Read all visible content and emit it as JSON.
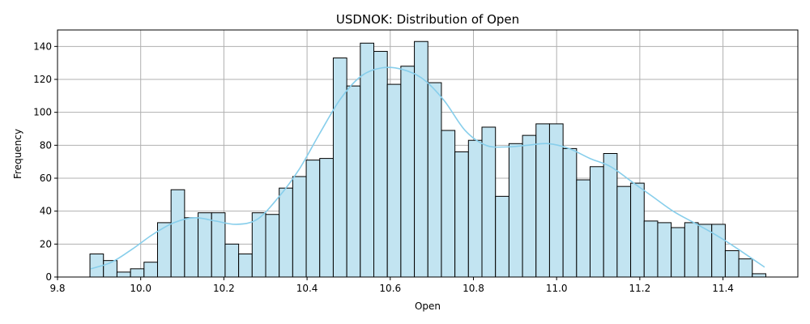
{
  "chart_data": {
    "type": "bar",
    "title": "USDNOK: Distribution of Open",
    "xlabel": "Open",
    "ylabel": "Frequency",
    "xlim": [
      9.8,
      11.58
    ],
    "ylim": [
      0,
      150
    ],
    "x_ticks": [
      9.8,
      10.0,
      10.2,
      10.4,
      10.6,
      10.8,
      11.0,
      11.2,
      11.4
    ],
    "x_tick_labels": [
      "9.8",
      "10.0",
      "10.2",
      "10.4",
      "10.6",
      "10.8",
      "11.0",
      "11.2",
      "11.4"
    ],
    "y_ticks": [
      0,
      20,
      40,
      60,
      80,
      100,
      120,
      140
    ],
    "y_tick_labels": [
      "0",
      "20",
      "40",
      "60",
      "80",
      "100",
      "120",
      "140"
    ],
    "grid": true,
    "bin_start": 9.878,
    "bin_width": 0.0325,
    "values": [
      14,
      10,
      3,
      5,
      9,
      33,
      53,
      36,
      39,
      39,
      20,
      14,
      39,
      38,
      54,
      61,
      71,
      72,
      133,
      116,
      142,
      137,
      117,
      128,
      143,
      118,
      89,
      76,
      83,
      91,
      49,
      81,
      86,
      93,
      93,
      78,
      59,
      67,
      75,
      55,
      57,
      34,
      33,
      30,
      33,
      32,
      32,
      16,
      11,
      2
    ],
    "kde": {
      "x": [
        9.88,
        9.93,
        9.98,
        10.03,
        10.08,
        10.13,
        10.18,
        10.23,
        10.28,
        10.33,
        10.38,
        10.43,
        10.48,
        10.53,
        10.58,
        10.63,
        10.68,
        10.73,
        10.78,
        10.83,
        10.88,
        10.93,
        10.98,
        11.03,
        11.08,
        11.13,
        11.18,
        11.23,
        11.28,
        11.33,
        11.38,
        11.43,
        11.5
      ],
      "y": [
        5,
        9,
        17,
        26,
        33,
        36,
        34,
        32,
        35,
        48,
        65,
        87,
        108,
        122,
        127,
        126,
        120,
        107,
        89,
        80,
        79,
        80,
        81,
        78,
        72,
        67,
        58,
        49,
        40,
        33,
        26,
        18,
        6
      ]
    },
    "colors": {
      "bar_fill": "#c2e4f1",
      "bar_edge": "#000000",
      "kde_line": "#87ceeb",
      "grid": "#b0b0b0"
    }
  }
}
